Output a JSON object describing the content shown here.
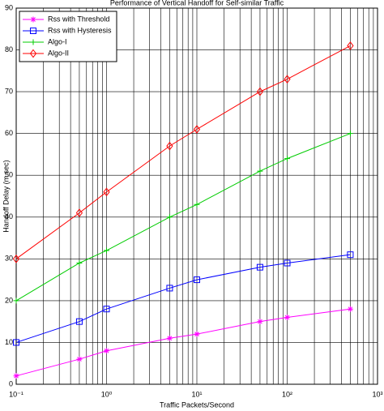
{
  "chart_data": {
    "type": "line",
    "title": "Performance of Vertical Handoff for Self-similar Traffic",
    "xlabel": "Traffic Packets/Second",
    "ylabel": "Handoff Delay (m sec)",
    "x": [
      0.1,
      0.5,
      1,
      5,
      10,
      50,
      100,
      500
    ],
    "series": [
      {
        "name": "Rss with Threshold",
        "color": "#ff00ff",
        "marker": "star",
        "values": [
          2,
          6,
          8,
          11,
          12,
          15,
          16,
          18
        ]
      },
      {
        "name": "Rss with Hysteresis",
        "color": "#0000ff",
        "marker": "square",
        "values": [
          10,
          15,
          18,
          23,
          25,
          28,
          29,
          31
        ]
      },
      {
        "name": "Algo-I",
        "color": "#00cc00",
        "marker": "plus",
        "values": [
          20,
          29,
          32,
          40,
          43,
          51,
          54,
          60
        ]
      },
      {
        "name": "Algo-II",
        "color": "#ff0000",
        "marker": "diamond",
        "values": [
          30,
          41,
          46,
          57,
          61,
          70,
          73,
          81
        ]
      }
    ],
    "xlim": [
      0.1,
      1000
    ],
    "xticks": [
      {
        "value": 0.1,
        "label": "10⁻¹"
      },
      {
        "value": 1,
        "label": "10⁰"
      },
      {
        "value": 10,
        "label": "10¹"
      },
      {
        "value": 100,
        "label": "10²"
      },
      {
        "value": 1000,
        "label": "10³"
      }
    ],
    "xscale": "log",
    "ylim": [
      0,
      90
    ],
    "yticks": [
      0,
      10,
      20,
      30,
      40,
      50,
      60,
      70,
      80,
      90
    ],
    "grid": true,
    "legend": "upper left"
  }
}
